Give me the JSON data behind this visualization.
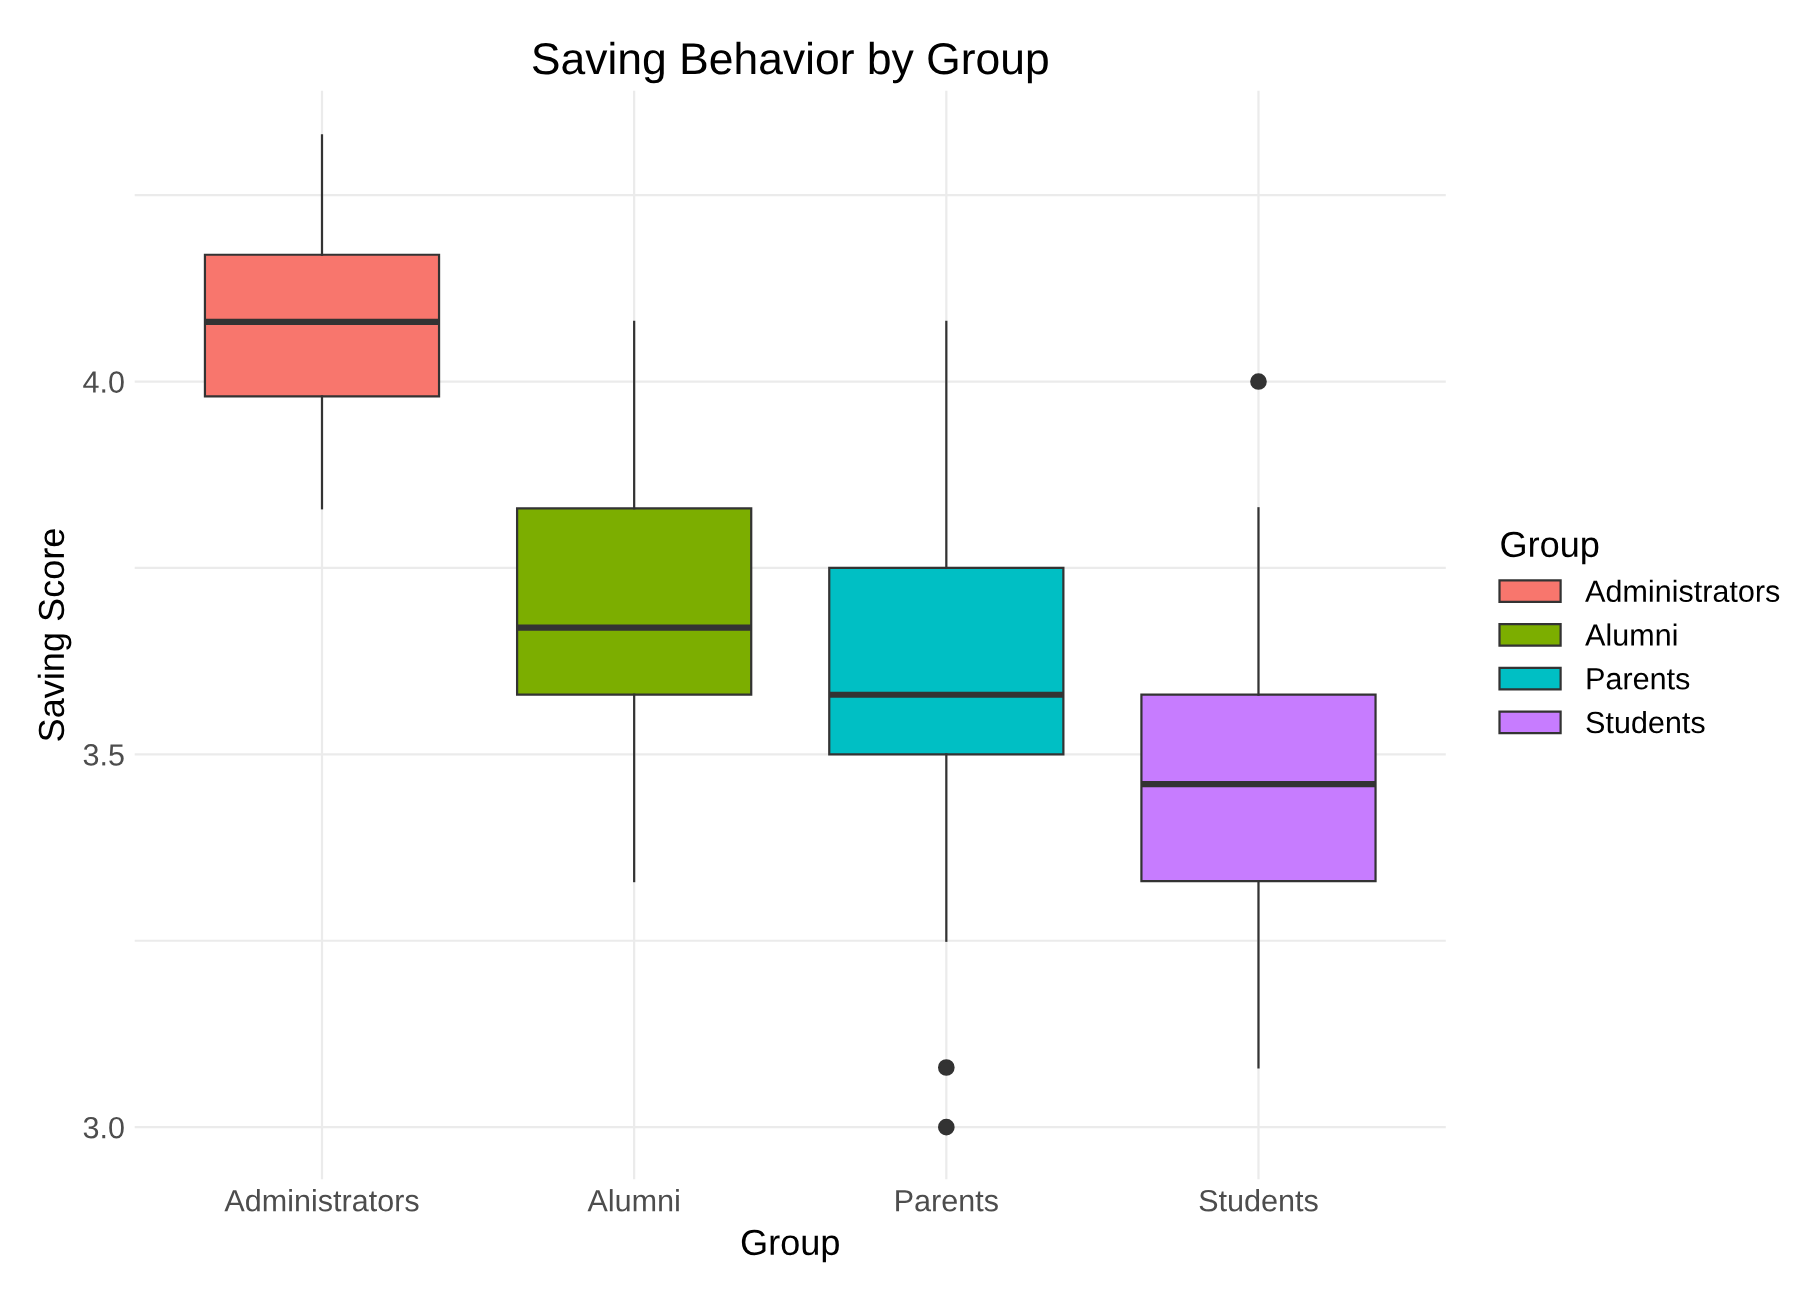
{
  "chart_data": {
    "type": "box",
    "title": "Saving Behavior by Group",
    "xlabel": "Group",
    "ylabel": "Saving Score",
    "legend_title": "Group",
    "categories": [
      "Administrators",
      "Alumni",
      "Parents",
      "Students"
    ],
    "series": [
      {
        "name": "Administrators",
        "color": "#f8766d",
        "boxes": [
          {
            "low": 3.83,
            "q1": 3.98,
            "median": 4.08,
            "q3": 4.17,
            "high": 4.33
          },
          null,
          null,
          null
        ]
      },
      {
        "name": "Alumni",
        "color": "#7cae00",
        "boxes": [
          null,
          {
            "low": 3.33,
            "q1": 3.58,
            "median": 3.67,
            "q3": 3.83,
            "high": 4.08
          },
          null,
          null
        ]
      },
      {
        "name": "Parents",
        "color": "#00bfc4",
        "boxes": [
          null,
          null,
          {
            "low": 3.25,
            "q1": 3.5,
            "median": 3.58,
            "q3": 3.75,
            "high": 4.08,
            "outliers": [
              3.08,
              3.0
            ]
          },
          null
        ]
      },
      {
        "name": "Students",
        "color": "#c77cff",
        "boxes": [
          null,
          null,
          null,
          {
            "low": 3.08,
            "q1": 3.33,
            "median": 3.46,
            "q3": 3.58,
            "high": 3.83,
            "outliers": [
              4.0
            ]
          }
        ]
      }
    ],
    "ylim": [
      2.93,
      4.39
    ],
    "yticks": [
      {
        "value": 3.0,
        "label": "3.0"
      },
      {
        "value": 3.25,
        "label": null
      },
      {
        "value": 3.5,
        "label": "3.5"
      },
      {
        "value": 3.75,
        "label": null
      },
      {
        "value": 4.0,
        "label": "4.0"
      },
      {
        "value": 4.25,
        "label": null
      }
    ],
    "grid": true,
    "legend": "right"
  }
}
